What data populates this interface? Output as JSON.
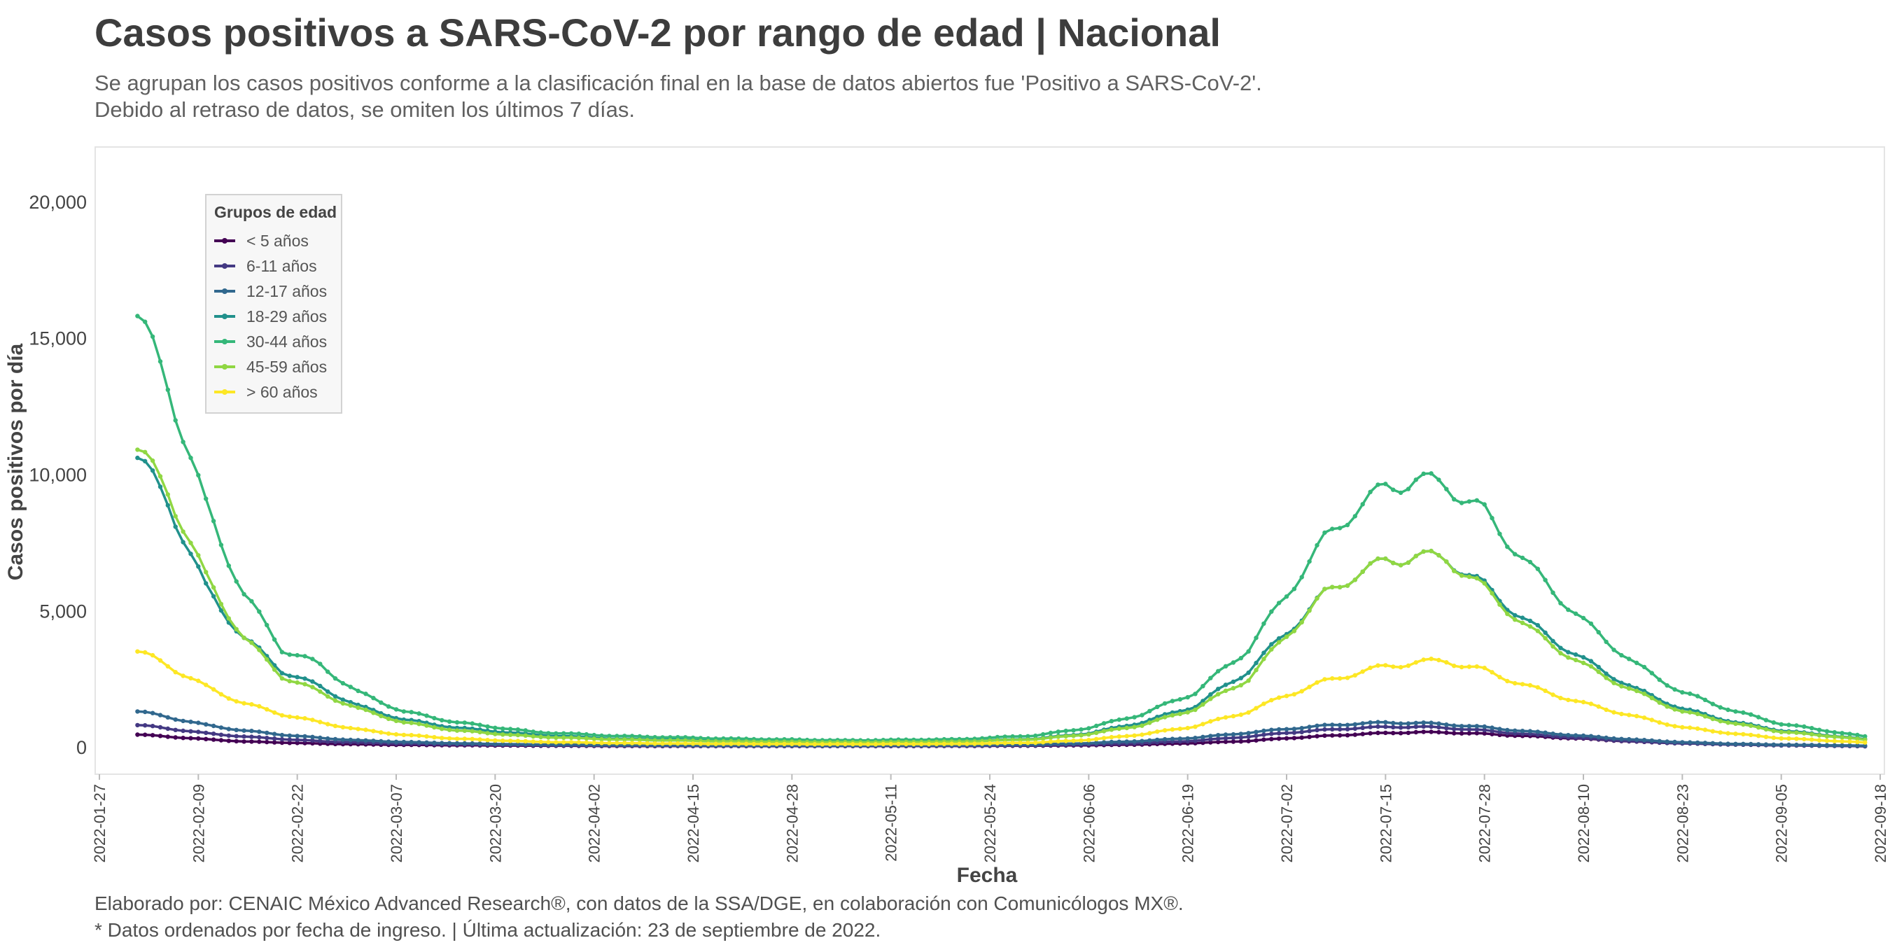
{
  "title": "Casos positivos a SARS-CoV-2 por rango de edad | Nacional",
  "subtitle": [
    "Se agrupan los casos positivos conforme a la clasificación final en la base de datos abiertos fue 'Positivo a SARS-CoV-2'.",
    "Debido al retraso de datos, se omiten los últimos 7 días."
  ],
  "caption": [
    "Elaborado por: CENAIC México Advanced Research®, con datos de la SSA/DGE, en colaboración con Comunicólogos MX®.",
    "* Datos ordenados por fecha de ingreso. | Última actualización: 23 de septiembre de 2022."
  ],
  "chart_data": {
    "type": "line",
    "xlabel": "Fecha",
    "ylabel": "Casos positivos por día",
    "x_ticks": [
      "2022-01-27",
      "2022-02-09",
      "2022-02-22",
      "2022-03-07",
      "2022-03-20",
      "2022-04-02",
      "2022-04-15",
      "2022-04-28",
      "2022-05-11",
      "2022-05-24",
      "2022-06-06",
      "2022-06-19",
      "2022-07-02",
      "2022-07-15",
      "2022-07-28",
      "2022-08-10",
      "2022-08-23",
      "2022-09-05",
      "2022-09-18"
    ],
    "y_ticks": [
      0,
      5000,
      10000,
      15000,
      20000
    ],
    "y_tick_labels": [
      "0",
      "5,000",
      "10,000",
      "15,000",
      "20,000"
    ],
    "xlim": [
      "2022-01-27",
      "2022-09-18"
    ],
    "ylim": [
      -1000,
      22000
    ],
    "legend_title": "Grupos de edad",
    "legend_position": "top-left",
    "grid": false,
    "x": [
      "2022-02-01",
      "2022-02-05",
      "2022-02-10",
      "2022-02-15",
      "2022-02-20",
      "2022-02-25",
      "2022-03-02",
      "2022-03-08",
      "2022-03-15",
      "2022-03-25",
      "2022-04-05",
      "2022-04-20",
      "2022-05-05",
      "2022-05-20",
      "2022-05-30",
      "2022-06-06",
      "2022-06-13",
      "2022-06-20",
      "2022-06-27",
      "2022-07-02",
      "2022-07-07",
      "2022-07-11",
      "2022-07-15",
      "2022-07-19",
      "2022-07-23",
      "2022-07-28",
      "2022-08-03",
      "2022-08-10",
      "2022-08-17",
      "2022-08-23",
      "2022-08-30",
      "2022-09-05",
      "2022-09-12",
      "2022-09-16"
    ],
    "series": [
      {
        "name": "< 5 años",
        "color": "#440154",
        "values": [
          450,
          380,
          280,
          200,
          160,
          120,
          95,
          75,
          60,
          45,
          35,
          30,
          30,
          35,
          45,
          60,
          90,
          140,
          220,
          320,
          400,
          460,
          510,
          540,
          530,
          480,
          390,
          300,
          190,
          130,
          90,
          60,
          40,
          25
        ]
      },
      {
        "name": "6-11 años",
        "color": "#443983",
        "values": [
          800,
          680,
          500,
          380,
          290,
          210,
          160,
          120,
          90,
          65,
          50,
          40,
          38,
          45,
          60,
          90,
          140,
          230,
          380,
          520,
          620,
          690,
          730,
          740,
          700,
          600,
          460,
          320,
          200,
          130,
          85,
          60,
          40,
          30
        ]
      },
      {
        "name": "12-17 años",
        "color": "#31688e",
        "values": [
          1300,
          1100,
          800,
          600,
          450,
          330,
          240,
          180,
          130,
          90,
          70,
          55,
          52,
          65,
          90,
          140,
          220,
          340,
          520,
          660,
          780,
          850,
          890,
          880,
          830,
          720,
          560,
          400,
          260,
          170,
          110,
          80,
          60,
          45
        ]
      },
      {
        "name": "18-29 años",
        "color": "#21918c",
        "values": [
          10600,
          9000,
          5800,
          4000,
          2800,
          2200,
          1500,
          1000,
          700,
          450,
          300,
          220,
          180,
          200,
          300,
          500,
          900,
          1500,
          2800,
          4200,
          5600,
          6300,
          6800,
          7000,
          6900,
          5900,
          4500,
          3200,
          2100,
          1400,
          900,
          600,
          400,
          280
        ]
      },
      {
        "name": "30-44 años",
        "color": "#35b779",
        "values": [
          15800,
          13300,
          8800,
          5600,
          3600,
          3000,
          2000,
          1300,
          900,
          550,
          400,
          300,
          240,
          280,
          420,
          700,
          1200,
          2000,
          3600,
          5600,
          7600,
          8700,
          9500,
          9800,
          9600,
          8600,
          6600,
          4600,
          3000,
          2000,
          1300,
          850,
          550,
          380
        ]
      },
      {
        "name": "45-59 años",
        "color": "#90d743",
        "values": [
          10900,
          9400,
          6200,
          4000,
          2600,
          2000,
          1400,
          900,
          600,
          380,
          270,
          200,
          170,
          190,
          280,
          470,
          800,
          1400,
          2500,
          4100,
          5600,
          6300,
          6800,
          7000,
          6900,
          5800,
          4300,
          3000,
          2000,
          1300,
          850,
          560,
          380,
          260
        ]
      },
      {
        "name": "> 60 años",
        "color": "#fde725",
        "values": [
          3500,
          3000,
          2200,
          1600,
          1200,
          900,
          640,
          440,
          300,
          190,
          140,
          110,
          100,
          110,
          160,
          260,
          460,
          760,
          1300,
          1900,
          2400,
          2700,
          2950,
          3100,
          3150,
          2800,
          2200,
          1600,
          1100,
          720,
          480,
          320,
          220,
          160
        ]
      }
    ]
  }
}
